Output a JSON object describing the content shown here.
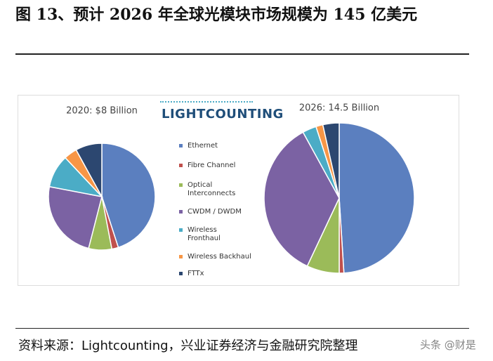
{
  "figure_title": "图 13、预计 2026 年全球光模块市场规模为 145 亿美元",
  "logo": "LIGHTCOUNTING",
  "categories": [
    "Ethernet",
    "Fibre Channel",
    "Optical Interconnects",
    "CWDM / DWDM",
    "Wireless Fronthaul",
    "Wireless Backhaul",
    "FTTx"
  ],
  "colors": [
    "#5b7fbf",
    "#c0504d",
    "#9bbb59",
    "#7b62a3",
    "#4bacc6",
    "#f79646",
    "#2c4770"
  ],
  "chart_data": [
    {
      "type": "pie",
      "title": "2020: $8 Billion",
      "values": [
        45,
        2,
        7,
        24,
        10,
        4,
        8
      ]
    },
    {
      "type": "pie",
      "title": "2026: 14.5 Billion",
      "values": [
        49,
        1,
        7,
        35,
        3,
        1.5,
        3.5
      ]
    }
  ],
  "source": "资料来源：Lightcounting，兴业证券经济与金融研究院整理",
  "watermark": "头条 @财是"
}
